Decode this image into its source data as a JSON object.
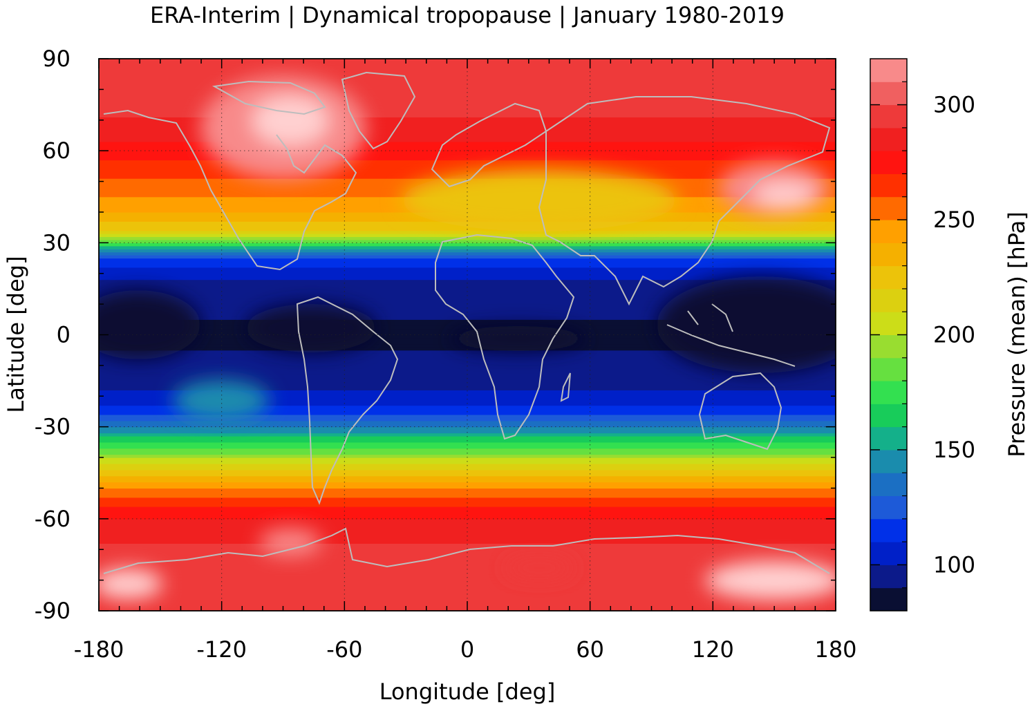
{
  "chart_data": {
    "type": "heatmap",
    "title": "ERA-Interim | Dynamical tropopause | January 1980-2019",
    "xlabel": "Longitude [deg]",
    "ylabel": "Latitude [deg]",
    "colorbar_label": "Pressure (mean) [hPa]",
    "xlim": [
      -180,
      180
    ],
    "ylim": [
      -90,
      90
    ],
    "xticks": [
      "-180",
      "-120",
      "-60",
      "0",
      "60",
      "120",
      "180"
    ],
    "yticks": [
      "90",
      "60",
      "30",
      "0",
      "-30",
      "-60",
      "-90"
    ],
    "grid": true,
    "colorbar": {
      "range": [
        80,
        320
      ],
      "ticks": [
        "300",
        "250",
        "200",
        "150",
        "100"
      ],
      "levels": [
        80,
        90,
        100,
        110,
        120,
        130,
        140,
        150,
        160,
        170,
        180,
        190,
        200,
        210,
        220,
        230,
        240,
        250,
        260,
        270,
        280,
        290,
        300,
        310,
        320
      ],
      "colors": [
        "#0a0f33",
        "#0c1a8a",
        "#0020c8",
        "#0030e8",
        "#1d5ad8",
        "#1b6fc3",
        "#1a8cad",
        "#14b08a",
        "#18cc5a",
        "#33e050",
        "#66e040",
        "#99dd30",
        "#ccdd18",
        "#dcd010",
        "#ecc30a",
        "#f5b000",
        "#ffa000",
        "#ff6a00",
        "#ff3000",
        "#ff1410",
        "#f02020",
        "#ee3a3a",
        "#f06060",
        "#f88a8a",
        "#ffd0d0"
      ]
    },
    "zonal_profile": [
      {
        "lat": -90,
        "value": 295
      },
      {
        "lat": -80,
        "value": 297
      },
      {
        "lat": -70,
        "value": 292
      },
      {
        "lat": -62,
        "value": 285
      },
      {
        "lat": -55,
        "value": 268
      },
      {
        "lat": -48,
        "value": 240
      },
      {
        "lat": -42,
        "value": 210
      },
      {
        "lat": -36,
        "value": 175
      },
      {
        "lat": -30,
        "value": 140
      },
      {
        "lat": -25,
        "value": 115
      },
      {
        "lat": -18,
        "value": 100
      },
      {
        "lat": -10,
        "value": 92
      },
      {
        "lat": 0,
        "value": 88
      },
      {
        "lat": 10,
        "value": 92
      },
      {
        "lat": 18,
        "value": 100
      },
      {
        "lat": 24,
        "value": 115
      },
      {
        "lat": 28,
        "value": 150
      },
      {
        "lat": 31,
        "value": 190
      },
      {
        "lat": 35,
        "value": 225
      },
      {
        "lat": 42,
        "value": 245
      },
      {
        "lat": 52,
        "value": 262
      },
      {
        "lat": 62,
        "value": 278
      },
      {
        "lat": 72,
        "value": 292
      },
      {
        "lat": 82,
        "value": 296
      },
      {
        "lat": 90,
        "value": 295
      }
    ]
  }
}
